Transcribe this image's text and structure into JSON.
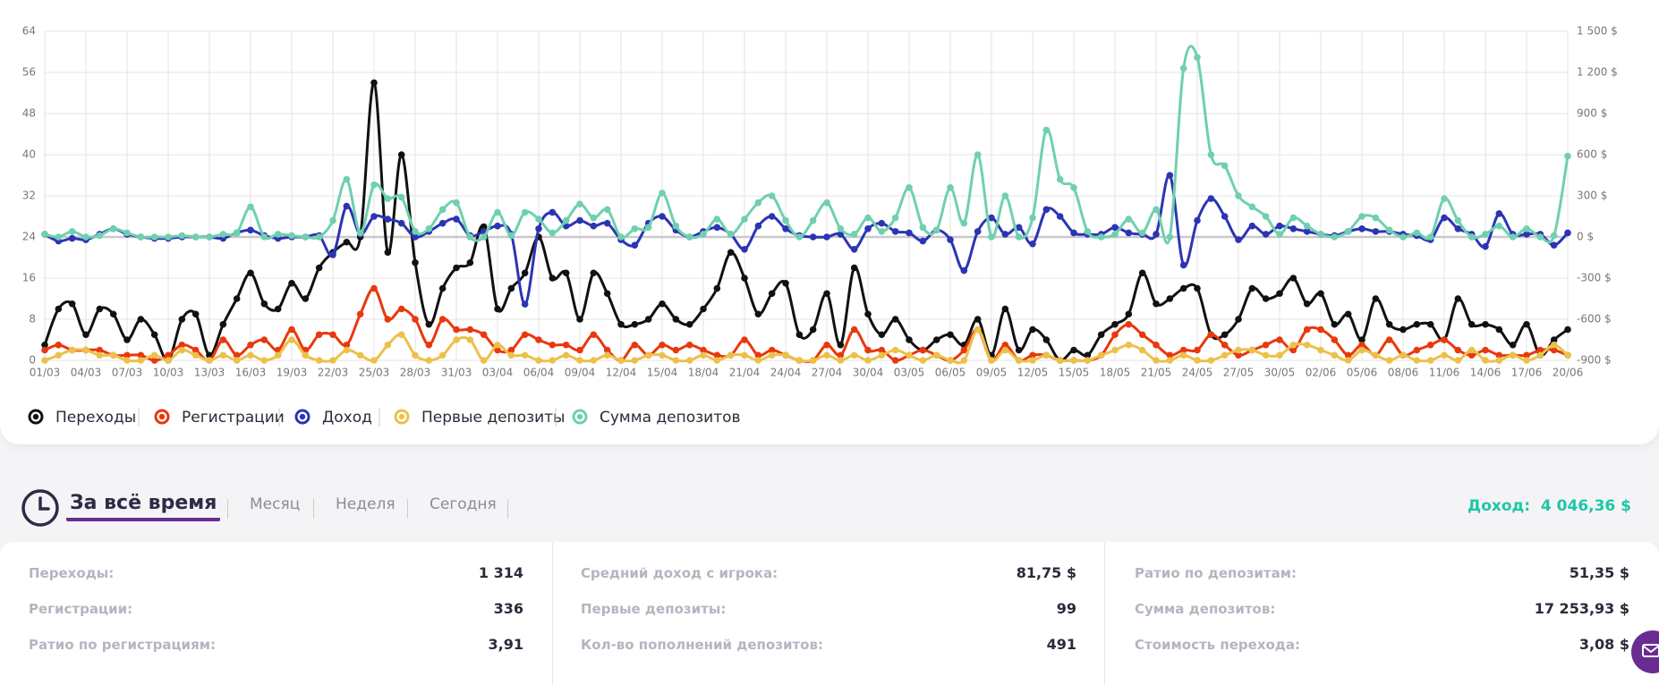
{
  "chart_data": {
    "type": "line",
    "categories": [
      "01/03",
      null,
      null,
      "04/03",
      null,
      null,
      "07/03",
      null,
      null,
      "10/03",
      null,
      null,
      "13/03",
      null,
      null,
      "16/03",
      null,
      null,
      "19/03",
      null,
      null,
      "22/03",
      null,
      null,
      "25/03",
      null,
      null,
      "28/03",
      null,
      null,
      "31/03",
      null,
      null,
      "03/04",
      null,
      null,
      "06/04",
      null,
      null,
      "09/04",
      null,
      null,
      "12/04",
      null,
      null,
      "15/04",
      null,
      null,
      "18/04",
      null,
      null,
      "21/04",
      null,
      null,
      "24/04",
      null,
      null,
      "27/04",
      null,
      null,
      "30/04",
      null,
      null,
      "03/05",
      null,
      null,
      "06/05",
      null,
      null,
      "09/05",
      null,
      null,
      "12/05",
      null,
      null,
      "15/05",
      null,
      null,
      "18/05",
      null,
      null,
      "21/05",
      null,
      null,
      "24/05",
      null,
      null,
      "27/05",
      null,
      null,
      "30/05",
      null,
      null,
      "02/06",
      null,
      null,
      "05/06",
      null,
      null,
      "08/06",
      null,
      null,
      "11/06",
      null,
      null,
      "14/06",
      null,
      null,
      "17/06",
      null,
      null,
      "20/06"
    ],
    "ylim": [
      0,
      64
    ],
    "yticks": [
      0,
      8,
      16,
      24,
      32,
      40,
      48,
      56,
      64
    ],
    "y2lim": [
      -900,
      1500
    ],
    "y2ticks": [
      {
        "value": -900,
        "label": "-900 $"
      },
      {
        "value": -600,
        "label": "-600 $"
      },
      {
        "value": -300,
        "label": "-300 $"
      },
      {
        "value": 0,
        "label": "0 $"
      },
      {
        "value": 300,
        "label": "300 $"
      },
      {
        "value": 600,
        "label": "600 $"
      },
      {
        "value": 900,
        "label": "900 $"
      },
      {
        "value": 1200,
        "label": "1 200 $"
      },
      {
        "value": 1500,
        "label": "1 500 $"
      }
    ],
    "grid": true,
    "series": [
      {
        "name": "Переходы",
        "color": "#111111",
        "values": [
          3,
          10,
          11,
          5,
          10,
          9,
          4,
          8,
          5,
          0,
          8,
          9,
          1,
          7,
          12,
          17,
          11,
          10,
          15,
          12,
          18,
          21,
          23,
          24,
          54,
          21,
          40,
          19,
          7,
          14,
          18,
          19,
          26,
          10,
          14,
          17,
          24,
          16,
          17,
          8,
          17,
          13,
          7,
          7,
          8,
          11,
          8,
          7,
          10,
          14,
          21,
          16,
          9,
          13,
          15,
          5,
          6,
          13,
          3,
          18,
          9,
          5,
          8,
          4,
          2,
          4,
          5,
          3,
          8,
          1,
          10,
          2,
          6,
          4,
          0,
          2,
          1,
          5,
          7,
          9,
          17,
          11,
          12,
          14,
          14,
          5,
          5,
          8,
          14,
          12,
          13,
          16,
          11,
          13,
          7,
          9,
          4,
          12,
          7,
          6,
          7,
          7,
          4,
          12,
          7,
          7,
          6,
          3,
          7,
          1,
          4,
          6
        ]
      },
      {
        "name": "Регистрации",
        "color": "#e8380d",
        "values": [
          2,
          3,
          2,
          2,
          2,
          1,
          1,
          1,
          0,
          1,
          3,
          2,
          0,
          4,
          1,
          3,
          4,
          2,
          6,
          2,
          5,
          5,
          3,
          9,
          14,
          8,
          10,
          8,
          3,
          8,
          6,
          6,
          5,
          2,
          2,
          5,
          4,
          3,
          3,
          2,
          5,
          2,
          0,
          3,
          1,
          3,
          2,
          3,
          2,
          1,
          1,
          4,
          1,
          2,
          1,
          0,
          0,
          3,
          1,
          6,
          2,
          2,
          0,
          1,
          2,
          1,
          0,
          2,
          6,
          0,
          3,
          0,
          1,
          1,
          0,
          0,
          0,
          1,
          5,
          7,
          5,
          3,
          1,
          2,
          2,
          5,
          3,
          1,
          2,
          3,
          4,
          2,
          6,
          6,
          4,
          1,
          3,
          1,
          4,
          1,
          2,
          3,
          4,
          2,
          1,
          2,
          1,
          1,
          1,
          2,
          2,
          1
        ]
      },
      {
        "name": "Доход",
        "color": "#2b35b3",
        "axis": "y2",
        "values": [
          20,
          -30,
          -10,
          -20,
          20,
          60,
          20,
          0,
          -10,
          -10,
          0,
          0,
          0,
          -10,
          30,
          50,
          10,
          -10,
          0,
          0,
          10,
          -130,
          225,
          20,
          150,
          130,
          100,
          0,
          40,
          100,
          130,
          10,
          40,
          80,
          20,
          -490,
          60,
          180,
          80,
          120,
          80,
          100,
          -20,
          -60,
          100,
          150,
          50,
          0,
          40,
          70,
          20,
          -90,
          80,
          150,
          60,
          10,
          0,
          0,
          20,
          -90,
          60,
          100,
          40,
          30,
          -30,
          50,
          -20,
          -245,
          40,
          140,
          20,
          70,
          -50,
          200,
          150,
          30,
          20,
          20,
          70,
          30,
          20,
          20,
          450,
          -205,
          120,
          280,
          150,
          -20,
          80,
          20,
          80,
          60,
          40,
          20,
          10,
          40,
          60,
          40,
          40,
          20,
          10,
          -20,
          140,
          60,
          20,
          -70,
          170,
          20,
          20,
          20,
          -60,
          30
        ]
      },
      {
        "name": "Первые депозиты",
        "color": "#ecc14a",
        "values": [
          0,
          1,
          2,
          2,
          1,
          1,
          0,
          0,
          1,
          0,
          2,
          1,
          0,
          1,
          0,
          1,
          0,
          1,
          4,
          1,
          0,
          0,
          2,
          1,
          0,
          3,
          5,
          1,
          0,
          1,
          4,
          4,
          0,
          3,
          1,
          1,
          0,
          0,
          1,
          0,
          0,
          1,
          0,
          0,
          1,
          1,
          0,
          0,
          1,
          0,
          1,
          1,
          0,
          1,
          1,
          0,
          0,
          1,
          0,
          1,
          0,
          1,
          2,
          1,
          0,
          1,
          0,
          0,
          6,
          0,
          2,
          0,
          0,
          1,
          0,
          0,
          0,
          1,
          2,
          3,
          2,
          0,
          0,
          1,
          0,
          0,
          1,
          2,
          2,
          1,
          1,
          3,
          3,
          2,
          1,
          0,
          2,
          1,
          0,
          1,
          0,
          0,
          1,
          0,
          2,
          0,
          0,
          1,
          0,
          1,
          3,
          1
        ]
      },
      {
        "name": "Сумма депозитов",
        "color": "#6fd0b0",
        "axis": "y2",
        "values": [
          20,
          0,
          40,
          0,
          10,
          60,
          30,
          0,
          0,
          0,
          10,
          0,
          0,
          20,
          30,
          220,
          0,
          20,
          10,
          0,
          0,
          120,
          420,
          30,
          380,
          280,
          290,
          40,
          60,
          200,
          250,
          0,
          0,
          180,
          10,
          180,
          130,
          30,
          120,
          240,
          140,
          200,
          0,
          60,
          70,
          320,
          80,
          0,
          20,
          130,
          20,
          130,
          250,
          300,
          120,
          0,
          120,
          250,
          60,
          20,
          140,
          40,
          140,
          360,
          70,
          50,
          360,
          100,
          600,
          0,
          300,
          0,
          140,
          780,
          420,
          360,
          40,
          0,
          20,
          130,
          30,
          200,
          0,
          1230,
          1310,
          600,
          520,
          300,
          220,
          150,
          20,
          140,
          80,
          20,
          0,
          40,
          150,
          140,
          50,
          0,
          30,
          0,
          280,
          120,
          0,
          20,
          80,
          0,
          60,
          0,
          10,
          590
        ]
      }
    ]
  },
  "period_tabs": [
    "За всё время",
    "Месяц",
    "Неделя",
    "Сегодня"
  ],
  "income_label": "Доход:",
  "income_value": "4 046,36 $",
  "stats": [
    [
      {
        "label": "Переходы:",
        "value": "1 314"
      },
      {
        "label": "Регистрации:",
        "value": "336"
      },
      {
        "label": "Ратио по регистрациям:",
        "value": "3,91"
      }
    ],
    [
      {
        "label": "Средний доход с игрока:",
        "value": "81,75 $"
      },
      {
        "label": "Первые депозиты:",
        "value": "99"
      },
      {
        "label": "Кол-во пополнений депозитов:",
        "value": "491"
      }
    ],
    [
      {
        "label": "Ратио по депозитам:",
        "value": "51,35 $"
      },
      {
        "label": "Сумма депозитов:",
        "value": "17 253,93 $"
      },
      {
        "label": "Стоимость перехода:",
        "value": "3,08 $"
      }
    ]
  ]
}
